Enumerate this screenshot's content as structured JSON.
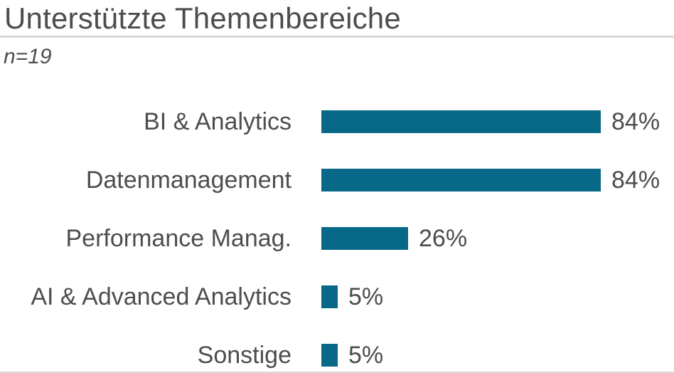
{
  "page": {
    "title": "Unterstützte Themenbereiche",
    "subtitle": "n=19"
  },
  "chart_data": {
    "type": "bar",
    "orientation": "horizontal",
    "title": "Unterstützte Themenbereiche",
    "subtitle": "n=19",
    "categories": [
      "BI & Analytics",
      "Datenmanagement",
      "Performance Manag.",
      "AI & Advanced Analytics",
      "Sonstige"
    ],
    "values": [
      84,
      84,
      26,
      5,
      5
    ],
    "value_unit": "%",
    "value_labels": [
      "84%",
      "84%",
      "26%",
      "5%",
      "5%"
    ],
    "xlim": [
      0,
      100
    ],
    "grid": false,
    "legend": false,
    "bar_color": "#076987"
  },
  "colors": {
    "background": "#ffffff",
    "text": "#4d4d4d",
    "divider": "#d9d9d9",
    "bar": "#076987"
  }
}
